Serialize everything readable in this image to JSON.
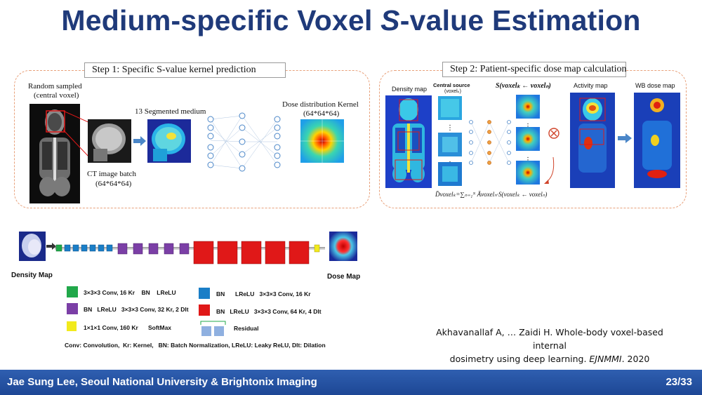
{
  "slide": {
    "title_part1": "Medium-specific Voxel ",
    "title_italic": "S",
    "title_part2": "-value Estimation"
  },
  "step1": {
    "label": "Step 1: Specific S-value kernel prediction",
    "random_sampled": "Random sampled",
    "central_voxel": "(central voxel)",
    "ct_batch": "CT image batch",
    "ct_batch_size": "(64*64*64)",
    "segmented": "13 Segmented medium",
    "kernel": "Dose distribution Kernel",
    "kernel_size": "(64*64*64)"
  },
  "step2": {
    "label": "Step 2: Patient-specific dose map calculation",
    "density_map": "Density map",
    "central_source": "Central source",
    "central_source_sub": "(voxelₖ)",
    "s_formula": "S(voxelₖ ← voxelₙ)",
    "activity_map": "Activity map",
    "wb_dose_map": "WB dose map",
    "dose_formula": "D̄voxelₖ=∑ₙ₌₁ᴺ Āvoxelₙ·S(voxelₖ ← voxelₙ)"
  },
  "network": {
    "density_map": "Density Map",
    "dose_map": "Dose Map"
  },
  "legend": {
    "green": "3×3×3 Conv, 16 Kr    BN    LReLU",
    "blue_bn": "BN",
    "blue_rest": "LReLU   3×3×3 Conv, 16 Kr",
    "purple": "BN   LReLU   3×3×3 Conv, 32 Kr, 2 Dlt",
    "red": "BN   LReLU   3×3×3 Conv, 64 Kr, 4 Dlt",
    "yellow": "1×1×1 Conv, 160 Kr      SoftMax",
    "residual": "Residual",
    "abbrev": "Conv: Convolution,  Kr: Kernel,   BN: Batch Normalization, LReLU: Leaky ReLU, Dlt: Dilation"
  },
  "citation": {
    "line1": "Akhavanallaf A, … Zaidi H. Whole-body voxel-based internal",
    "line2_plain": "dosimetry using deep learning. ",
    "line2_ital": "EJNMMI",
    "line2_end": ". 2020"
  },
  "footer": {
    "author": "Jae Sung Lee, Seoul National University & Brightonix Imaging",
    "page": "23/33"
  },
  "colors": {
    "title": "#1f3a7a",
    "footer": "#2f5fb0",
    "green_block": "#21a84a",
    "blue_block": "#1a7ec7",
    "purple_block": "#7b3fa6",
    "red_block": "#e01818",
    "yellow_block": "#f2ea1c"
  }
}
